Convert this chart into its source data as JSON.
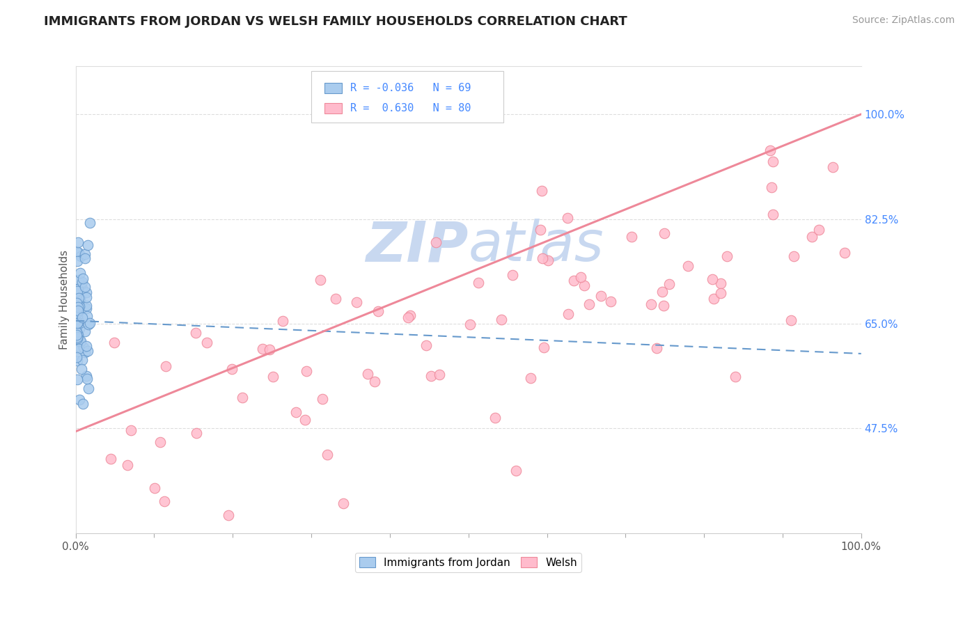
{
  "title": "IMMIGRANTS FROM JORDAN VS WELSH FAMILY HOUSEHOLDS CORRELATION CHART",
  "source_text": "Source: ZipAtlas.com",
  "ylabel": "Family Households",
  "right_ytick_labels": [
    "47.5%",
    "65.0%",
    "82.5%",
    "100.0%"
  ],
  "right_ytick_values": [
    0.475,
    0.65,
    0.825,
    1.0
  ],
  "xlim": [
    0.0,
    1.0
  ],
  "ylim": [
    0.3,
    1.08
  ],
  "x_tick_labels": [
    "0.0%",
    "100.0%"
  ],
  "x_tick_values": [
    0.0,
    1.0
  ],
  "blue_color": "#6699CC",
  "blue_fill": "#AACCEE",
  "pink_color": "#EE8899",
  "pink_fill": "#FFBBCC",
  "blue_R": -0.036,
  "blue_N": 69,
  "pink_R": 0.63,
  "pink_N": 80,
  "watermark_zip": "ZIP",
  "watermark_atlas": "atlas",
  "watermark_color": "#C8D8F0",
  "grid_color": "#DDDDDD",
  "title_fontsize": 13,
  "source_fontsize": 10
}
